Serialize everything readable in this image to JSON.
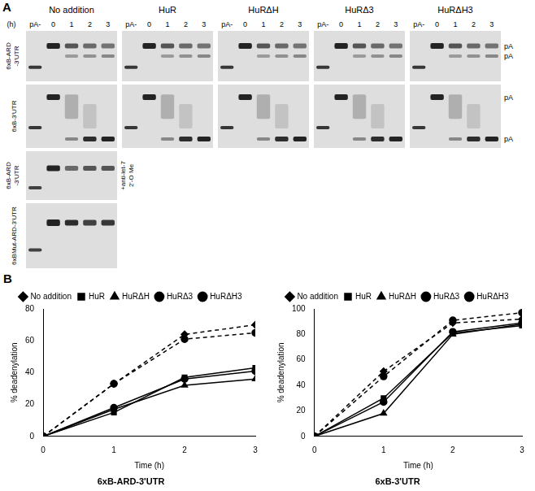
{
  "panel_a": {
    "label": "A",
    "time_label": "(h)",
    "groups": [
      "No addition",
      "HuR",
      "HuRΔH",
      "HuRΔ3",
      "HuRΔH3"
    ],
    "lanes": [
      "pA-",
      "0",
      "1",
      "2",
      "3"
    ],
    "rows": [
      {
        "label": "6xB-ARD -3'UTR",
        "groups": [
          "No addition",
          "HuR",
          "HuRΔH",
          "HuRΔ3",
          "HuRΔH3"
        ],
        "right_labels": [
          "pA",
          "pA"
        ]
      },
      {
        "label": "6xB-3'UTR",
        "groups": [
          "No addition",
          "HuR",
          "HuRΔH",
          "HuRΔ3",
          "HuRΔH3"
        ],
        "right_labels": [
          "pA",
          "pA"
        ]
      },
      {
        "label": "6xB-ARD -3'UTR",
        "groups": [
          "No addition"
        ],
        "annotation": "+anti-let-7 2'-O Me"
      },
      {
        "label": "6xBMut-ARD-3'UTR",
        "groups": [
          "No addition"
        ]
      }
    ]
  },
  "panel_b": {
    "label": "B"
  },
  "chart_data": [
    {
      "type": "line",
      "title": "6xB-ARD-3'UTR",
      "x_label": "Time (h)",
      "y_label": "% deadenylation",
      "x": [
        0,
        1,
        2,
        3
      ],
      "xlim": [
        0,
        3
      ],
      "xticks": [
        0,
        1,
        2,
        3
      ],
      "ylim": [
        0,
        80
      ],
      "yticks": [
        0,
        20,
        40,
        60,
        80
      ],
      "grid": false,
      "legend": "top",
      "series": [
        {
          "name": "No addition",
          "color": "#000000",
          "marker": "diamond",
          "line_style": "dashed",
          "values": [
            0,
            33,
            64,
            70
          ]
        },
        {
          "name": "HuR",
          "color": "#000000",
          "marker": "square",
          "line_style": "solid",
          "values": [
            0,
            15,
            37,
            43
          ]
        },
        {
          "name": "HuRΔH",
          "color": "#000000",
          "marker": "triangle",
          "line_style": "solid",
          "values": [
            0,
            17,
            32,
            36
          ]
        },
        {
          "name": "HuRΔ3",
          "color": "#000000",
          "marker": "circle",
          "line_style": "solid",
          "values": [
            0,
            18,
            36,
            41
          ]
        },
        {
          "name": "HuRΔH3",
          "color": "#000000",
          "marker": "circle",
          "line_style": "dashed",
          "values": [
            0,
            33,
            61,
            65
          ]
        }
      ]
    },
    {
      "type": "line",
      "title": "6xB-3'UTR",
      "x_label": "Time (h)",
      "y_label": "% deadenylation",
      "x": [
        0,
        1,
        2,
        3
      ],
      "xlim": [
        0,
        3
      ],
      "xticks": [
        0,
        1,
        2,
        3
      ],
      "ylim": [
        0,
        100
      ],
      "yticks": [
        0,
        20,
        40,
        60,
        80,
        100
      ],
      "grid": false,
      "legend": "top",
      "series": [
        {
          "name": "No addition",
          "color": "#000000",
          "marker": "diamond",
          "line_style": "dashed",
          "values": [
            0,
            51,
            89,
            92
          ]
        },
        {
          "name": "HuR",
          "color": "#000000",
          "marker": "square",
          "line_style": "solid",
          "values": [
            0,
            30,
            81,
            87
          ]
        },
        {
          "name": "HuRΔH",
          "color": "#000000",
          "marker": "triangle",
          "line_style": "solid",
          "values": [
            0,
            18,
            80,
            88
          ]
        },
        {
          "name": "HuRΔ3",
          "color": "#000000",
          "marker": "circle",
          "line_style": "solid",
          "values": [
            0,
            27,
            82,
            89
          ]
        },
        {
          "name": "HuRΔH3",
          "color": "#000000",
          "marker": "circle",
          "line_style": "dashed",
          "values": [
            0,
            47,
            91,
            97
          ]
        }
      ]
    }
  ]
}
